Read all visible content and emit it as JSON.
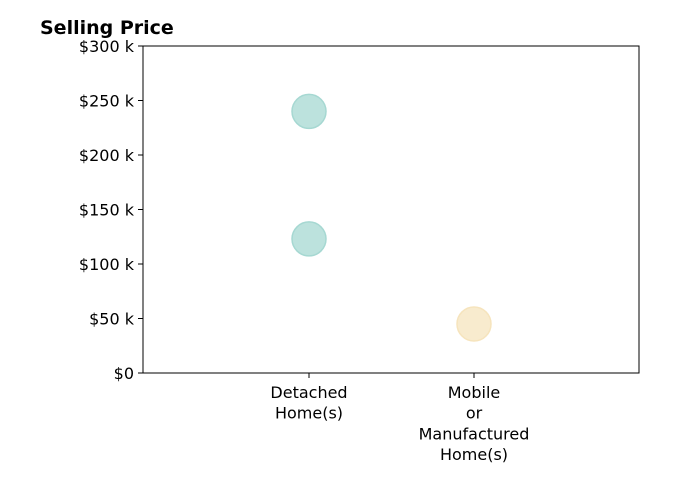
{
  "chart_data": {
    "type": "scatter",
    "title": "Selling Price",
    "xlabel": "",
    "ylabel": "",
    "categories": [
      [
        "Detached",
        "Home(s)"
      ],
      [
        "Mobile",
        "or",
        "Manufactured",
        "Home(s)"
      ]
    ],
    "ylim": [
      0,
      300000
    ],
    "yticks": [
      {
        "value": 0,
        "label": "$0"
      },
      {
        "value": 50000,
        "label": "$50 k"
      },
      {
        "value": 100000,
        "label": "$100 k"
      },
      {
        "value": 150000,
        "label": "$150 k"
      },
      {
        "value": 200000,
        "label": "$200 k"
      },
      {
        "value": 250000,
        "label": "$250 k"
      },
      {
        "value": 300000,
        "label": "$300 k"
      }
    ],
    "grid": false,
    "legend": "none",
    "points": [
      {
        "category": 0,
        "value": 240000,
        "color": "#a6d8d2"
      },
      {
        "category": 0,
        "value": 123000,
        "color": "#a6d8d2"
      },
      {
        "category": 1,
        "value": 45000,
        "color": "#f6e4bd"
      }
    ],
    "colors": {
      "detached": "#a6d8d2",
      "mobile": "#f6e4bd"
    }
  }
}
